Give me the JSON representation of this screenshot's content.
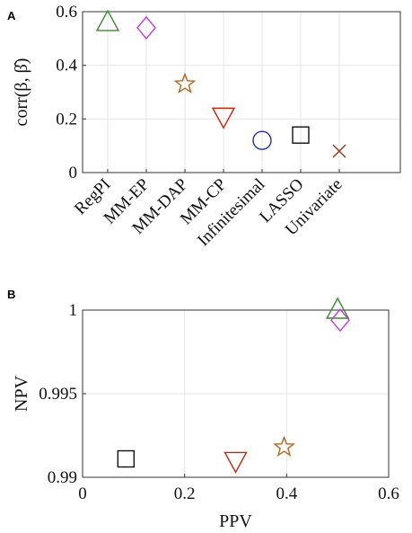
{
  "chart_data": [
    {
      "panel": "A",
      "type": "scatter",
      "ylabel": "corr(β, β̂)",
      "ylim": [
        0,
        0.6
      ],
      "yticks": [
        "0",
        "0.2",
        "0.4",
        "0.6"
      ],
      "grid": true,
      "categories": [
        "RegPI",
        "MM-EP",
        "MM-DAP",
        "MM-CP",
        "Infinitesimal",
        "LASSO",
        "Univariate"
      ],
      "points": [
        {
          "category": "RegPI",
          "y": 0.56,
          "marker": "triangle-up",
          "color": "#3a8a2e"
        },
        {
          "category": "MM-EP",
          "y": 0.54,
          "marker": "diamond",
          "color": "#c03ad0"
        },
        {
          "category": "MM-DAP",
          "y": 0.33,
          "marker": "star",
          "color": "#b5651d"
        },
        {
          "category": "MM-CP",
          "y": 0.21,
          "marker": "triangle-down",
          "color": "#cc2200"
        },
        {
          "category": "Infinitesimal",
          "y": 0.12,
          "marker": "circle",
          "color": "#1f2fbf"
        },
        {
          "category": "LASSO",
          "y": 0.14,
          "marker": "square",
          "color": "#111111"
        },
        {
          "category": "Univariate",
          "y": 0.08,
          "marker": "x",
          "color": "#8b3a1a"
        }
      ]
    },
    {
      "panel": "B",
      "type": "scatter",
      "xlabel": "PPV",
      "ylabel": "NPV",
      "xlim": [
        0,
        0.6
      ],
      "ylim": [
        0.99,
        1.0
      ],
      "xticks": [
        "0",
        "0.2",
        "0.4",
        "0.6"
      ],
      "yticks": [
        "0.99",
        "0.995",
        "1"
      ],
      "grid": true,
      "points": [
        {
          "x": 0.5,
          "y": 1.0,
          "marker": "triangle-up",
          "color": "#3a8a2e"
        },
        {
          "x": 0.505,
          "y": 0.9994,
          "marker": "diamond",
          "color": "#c03ad0"
        },
        {
          "x": 0.395,
          "y": 0.9918,
          "marker": "star",
          "color": "#b5651d"
        },
        {
          "x": 0.3,
          "y": 0.991,
          "marker": "triangle-down",
          "color": "#cc2200"
        },
        {
          "x": 0.085,
          "y": 0.9911,
          "marker": "square",
          "color": "#111111"
        }
      ]
    }
  ]
}
